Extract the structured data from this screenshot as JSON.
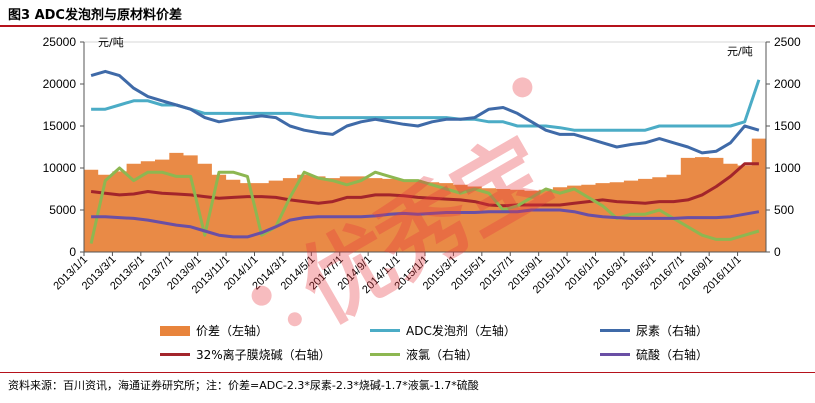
{
  "figure": {
    "title": "图3  ADC发泡剂与原材料价差",
    "source": "资料来源：百川资讯，海通证券研究所；注：价差=ADC-2.3*尿素-2.3*烧碱-1.7*液氯-1.7*硫酸",
    "watermark": "优秀宝"
  },
  "colors": {
    "spread": "#E8843C",
    "adc": "#4BACC6",
    "urea": "#3F6AA8",
    "caustic": "#A3252B",
    "chlorine": "#8DB751",
    "sulfuric": "#6A4FA5",
    "accent_rule": "#B5121B"
  },
  "chart_data": {
    "type": "line",
    "title": "",
    "left_axis": {
      "unit_label": "元/吨",
      "ylim": [
        0,
        25000
      ],
      "ticks": [
        0,
        5000,
        10000,
        15000,
        20000,
        25000
      ]
    },
    "right_axis": {
      "unit_label": "元/吨",
      "ylim": [
        0,
        2500
      ],
      "ticks": [
        0,
        500,
        1000,
        1500,
        2000,
        2500
      ]
    },
    "x_tick_labels": [
      "2013/1/1",
      "2013/3/1",
      "2013/5/1",
      "2013/7/1",
      "2013/9/1",
      "2013/11/1",
      "2014/1/1",
      "2014/3/1",
      "2014/5/1",
      "2014/7/1",
      "2014/9/1",
      "2014/11/1",
      "2015/1/1",
      "2015/3/1",
      "2015/5/1",
      "2015/7/1",
      "2015/9/1",
      "2015/11/1",
      "2016/1/1",
      "2016/3/1",
      "2016/5/1",
      "2016/7/1",
      "2016/9/1",
      "2016/11/1"
    ],
    "dates": [
      "2013-01",
      "2013-02",
      "2013-03",
      "2013-04",
      "2013-05",
      "2013-06",
      "2013-07",
      "2013-08",
      "2013-09",
      "2013-10",
      "2013-11",
      "2013-12",
      "2014-01",
      "2014-02",
      "2014-03",
      "2014-04",
      "2014-05",
      "2014-06",
      "2014-07",
      "2014-08",
      "2014-09",
      "2014-10",
      "2014-11",
      "2014-12",
      "2015-01",
      "2015-02",
      "2015-03",
      "2015-04",
      "2015-05",
      "2015-06",
      "2015-07",
      "2015-08",
      "2015-09",
      "2015-10",
      "2015-11",
      "2015-12",
      "2016-01",
      "2016-02",
      "2016-03",
      "2016-04",
      "2016-05",
      "2016-06",
      "2016-07",
      "2016-08",
      "2016-09",
      "2016-10",
      "2016-11",
      "2016-12"
    ],
    "series": [
      {
        "name": "价差（左轴）",
        "axis": "left",
        "kind": "area",
        "color_key": "spread",
        "values": [
          9800,
          9200,
          9600,
          10500,
          10800,
          11000,
          11800,
          11500,
          10500,
          9200,
          8600,
          8200,
          8200,
          8500,
          8800,
          9200,
          9000,
          8800,
          9000,
          9000,
          8800,
          8700,
          8600,
          8400,
          8300,
          8200,
          8000,
          7800,
          7600,
          7500,
          7400,
          7300,
          7400,
          7700,
          7900,
          8000,
          8200,
          8300,
          8500,
          8700,
          8900,
          9200,
          11200,
          11300,
          11200,
          10500,
          10300,
          13500
        ]
      },
      {
        "name": "ADC发泡剂（左轴）",
        "axis": "left",
        "kind": "line",
        "color_key": "adc",
        "values": [
          17000,
          17000,
          17500,
          18000,
          18000,
          17500,
          17500,
          17000,
          16500,
          16500,
          16500,
          16500,
          16500,
          16500,
          16500,
          16200,
          16000,
          16000,
          16000,
          16000,
          16000,
          16000,
          16000,
          16000,
          16000,
          16000,
          15800,
          15800,
          15500,
          15500,
          15000,
          15000,
          15000,
          14800,
          14500,
          14500,
          14500,
          14500,
          14500,
          14500,
          15000,
          15000,
          15000,
          15000,
          15000,
          15000,
          15500,
          20500
        ]
      },
      {
        "name": "尿素（右轴）",
        "axis": "right",
        "kind": "line",
        "color_key": "urea",
        "values": [
          2100,
          2150,
          2100,
          1950,
          1850,
          1800,
          1750,
          1700,
          1600,
          1550,
          1580,
          1600,
          1620,
          1600,
          1500,
          1450,
          1420,
          1400,
          1500,
          1550,
          1580,
          1550,
          1520,
          1500,
          1550,
          1580,
          1580,
          1600,
          1700,
          1720,
          1650,
          1550,
          1450,
          1400,
          1400,
          1350,
          1300,
          1250,
          1280,
          1300,
          1350,
          1300,
          1250,
          1180,
          1200,
          1300,
          1500,
          1450
        ]
      },
      {
        "name": "32%离子膜烧碱（右轴）",
        "axis": "right",
        "kind": "line",
        "color_key": "caustic",
        "values": [
          720,
          700,
          680,
          690,
          720,
          700,
          690,
          680,
          660,
          640,
          650,
          660,
          660,
          650,
          620,
          600,
          580,
          600,
          650,
          650,
          680,
          680,
          670,
          650,
          640,
          630,
          620,
          600,
          560,
          550,
          560,
          560,
          560,
          560,
          580,
          600,
          620,
          600,
          590,
          580,
          600,
          600,
          620,
          680,
          780,
          900,
          1050,
          1050
        ]
      },
      {
        "name": "液氯（右轴）",
        "axis": "right",
        "kind": "line",
        "color_key": "chlorine",
        "values": [
          100,
          850,
          1000,
          850,
          950,
          950,
          900,
          900,
          200,
          950,
          950,
          900,
          200,
          300,
          650,
          950,
          880,
          850,
          800,
          850,
          950,
          900,
          850,
          850,
          800,
          750,
          700,
          750,
          700,
          500,
          550,
          650,
          750,
          700,
          750,
          650,
          550,
          400,
          450,
          450,
          500,
          400,
          300,
          200,
          150,
          150,
          200,
          250
        ]
      },
      {
        "name": "硫酸（右轴）",
        "axis": "right",
        "kind": "line",
        "color_key": "sulfuric",
        "values": [
          420,
          420,
          410,
          400,
          380,
          350,
          320,
          300,
          250,
          200,
          180,
          180,
          230,
          300,
          380,
          410,
          420,
          420,
          420,
          420,
          430,
          450,
          460,
          450,
          460,
          470,
          470,
          470,
          480,
          480,
          480,
          500,
          500,
          500,
          480,
          440,
          420,
          410,
          400,
          400,
          400,
          400,
          410,
          410,
          410,
          420,
          450,
          480
        ]
      }
    ],
    "grid": false,
    "legend_position": "bottom"
  }
}
